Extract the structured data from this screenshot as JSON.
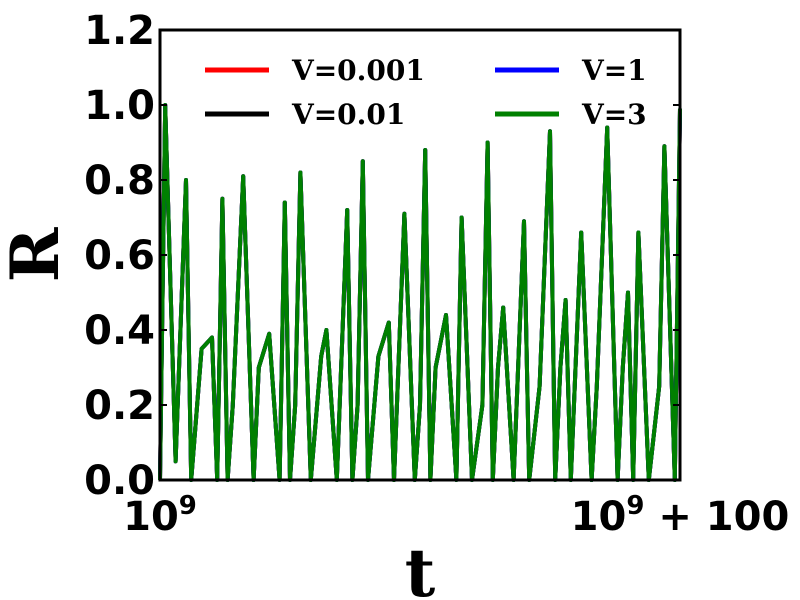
{
  "chart_data": {
    "type": "line",
    "xlabel": "t",
    "ylabel": "R",
    "xlim": [
      1000000000,
      1000000100
    ],
    "ylim": [
      0,
      1.2
    ],
    "x_tick_labels": [
      "10^9",
      "10^9 + 100"
    ],
    "y_ticks": [
      0.0,
      0.2,
      0.4,
      0.6,
      0.8,
      1.0,
      1.2
    ],
    "y_tick_labels": [
      "0.0",
      "0.2",
      "0.4",
      "0.6",
      "0.8",
      "1.0",
      "1.2"
    ],
    "grid": false,
    "legend": {
      "placement": "top",
      "columns": 2
    },
    "x": [
      1000000000,
      1000000001,
      1000000003,
      1000000005,
      1000000006,
      1000000008,
      1000000010,
      1000000011,
      1000000012,
      1000000013,
      1000000014,
      1000000016,
      1000000018,
      1000000019,
      1000000021,
      1000000023,
      1000000024,
      1000000025,
      1000000026,
      1000000027,
      1000000029,
      1000000031,
      1000000032,
      1000000034,
      1000000036,
      1000000037,
      1000000038,
      1000000039,
      1000000040,
      1000000042,
      1000000044,
      1000000045,
      1000000047,
      1000000049,
      1000000050,
      1000000051,
      1000000052,
      1000000053,
      1000000055,
      1000000057,
      1000000058,
      1000000060,
      1000000062,
      1000000063,
      1000000064,
      1000000065,
      1000000066,
      1000000068,
      1000000070,
      1000000071,
      1000000073,
      1000000075,
      1000000076,
      1000000077,
      1000000078,
      1000000079,
      1000000081,
      1000000083,
      1000000084,
      1000000086,
      1000000088,
      1000000089,
      1000000090,
      1000000091,
      1000000092,
      1000000094,
      1000000096,
      1000000097,
      1000000099,
      1000000100
    ],
    "series": [
      {
        "name": "V=0.001",
        "color": "#ff0000",
        "values": [
          0.0,
          1.0,
          0.05,
          0.8,
          0.0,
          0.35,
          0.38,
          0.0,
          0.75,
          0.0,
          0.2,
          0.81,
          0.0,
          0.3,
          0.39,
          0.0,
          0.74,
          0.0,
          0.2,
          0.82,
          0.0,
          0.33,
          0.4,
          0.0,
          0.72,
          0.0,
          0.2,
          0.85,
          0.0,
          0.33,
          0.42,
          0.0,
          0.71,
          0.0,
          0.2,
          0.88,
          0.0,
          0.3,
          0.44,
          0.0,
          0.7,
          0.0,
          0.2,
          0.9,
          0.0,
          0.3,
          0.46,
          0.0,
          0.69,
          0.0,
          0.25,
          0.93,
          0.0,
          0.3,
          0.48,
          0.0,
          0.66,
          0.0,
          0.25,
          0.94,
          0.0,
          0.3,
          0.5,
          0.0,
          0.66,
          0.0,
          0.25,
          0.89,
          0.0,
          0.99
        ]
      },
      {
        "name": "V=0.01",
        "color": "#000000",
        "values": [
          0.0,
          1.0,
          0.05,
          0.8,
          0.0,
          0.35,
          0.38,
          0.0,
          0.75,
          0.0,
          0.2,
          0.81,
          0.0,
          0.3,
          0.39,
          0.0,
          0.74,
          0.0,
          0.2,
          0.82,
          0.0,
          0.33,
          0.4,
          0.0,
          0.72,
          0.0,
          0.2,
          0.85,
          0.0,
          0.33,
          0.42,
          0.0,
          0.71,
          0.0,
          0.2,
          0.88,
          0.0,
          0.3,
          0.44,
          0.0,
          0.7,
          0.0,
          0.2,
          0.9,
          0.0,
          0.3,
          0.46,
          0.0,
          0.69,
          0.0,
          0.25,
          0.93,
          0.0,
          0.3,
          0.48,
          0.0,
          0.66,
          0.0,
          0.25,
          0.94,
          0.0,
          0.3,
          0.5,
          0.0,
          0.66,
          0.0,
          0.25,
          0.89,
          0.0,
          0.99
        ]
      },
      {
        "name": "V=1",
        "color": "#0000ff",
        "values": [
          0.0,
          1.0,
          0.05,
          0.8,
          0.0,
          0.35,
          0.38,
          0.0,
          0.75,
          0.0,
          0.2,
          0.81,
          0.0,
          0.3,
          0.39,
          0.0,
          0.74,
          0.0,
          0.2,
          0.82,
          0.0,
          0.33,
          0.4,
          0.0,
          0.72,
          0.0,
          0.2,
          0.85,
          0.0,
          0.33,
          0.42,
          0.0,
          0.71,
          0.0,
          0.2,
          0.88,
          0.0,
          0.3,
          0.44,
          0.0,
          0.7,
          0.0,
          0.2,
          0.9,
          0.0,
          0.3,
          0.46,
          0.0,
          0.69,
          0.0,
          0.25,
          0.93,
          0.0,
          0.3,
          0.48,
          0.0,
          0.66,
          0.0,
          0.25,
          0.94,
          0.0,
          0.3,
          0.5,
          0.0,
          0.66,
          0.0,
          0.25,
          0.89,
          0.0,
          0.99
        ]
      },
      {
        "name": "V=3",
        "color": "#008000",
        "values": [
          0.0,
          1.0,
          0.05,
          0.8,
          0.0,
          0.35,
          0.38,
          0.0,
          0.75,
          0.0,
          0.2,
          0.81,
          0.0,
          0.3,
          0.39,
          0.0,
          0.74,
          0.0,
          0.2,
          0.82,
          0.0,
          0.33,
          0.4,
          0.0,
          0.72,
          0.0,
          0.2,
          0.85,
          0.0,
          0.33,
          0.42,
          0.0,
          0.71,
          0.0,
          0.2,
          0.88,
          0.0,
          0.3,
          0.44,
          0.0,
          0.7,
          0.0,
          0.2,
          0.9,
          0.0,
          0.3,
          0.46,
          0.0,
          0.69,
          0.0,
          0.25,
          0.93,
          0.0,
          0.3,
          0.48,
          0.0,
          0.66,
          0.0,
          0.25,
          0.94,
          0.0,
          0.3,
          0.5,
          0.0,
          0.66,
          0.0,
          0.25,
          0.89,
          0.0,
          0.99
        ]
      }
    ]
  }
}
